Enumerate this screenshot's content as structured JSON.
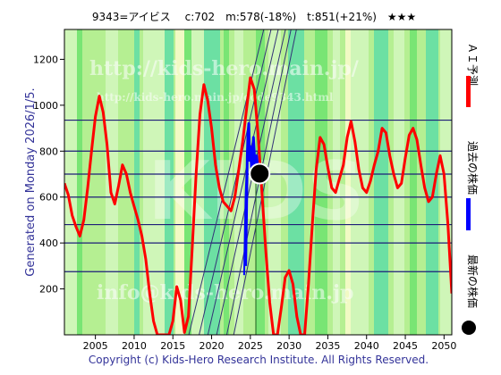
{
  "header": {
    "title": "9343=アイビス　 c:702　m:578(-18%)　t:851(+21%)　★★★"
  },
  "side_text": "Generated on Monday 2026/1/5.",
  "footer": "Copyright (c) Kids-Hero Research Institute. All Rights Reserved.",
  "watermarks": {
    "url": "http://kids-hero.main.jp/",
    "code_url": "http://kids-hero.main.jp/code9343.html",
    "logo": "KIDS",
    "email": "info@kids-hero.main.jp"
  },
  "legend": {
    "ai_label": "ＡＩ予測",
    "past_label": "過去の株価",
    "latest_label": "最新の株価"
  },
  "colors": {
    "plot_bg": "#b5ef92",
    "band_light": "#d4f7be",
    "band_bright": "#6fe36f",
    "band_teal": "#5fdda6",
    "band_yellow": "#fbfbcc",
    "ai_line": "#ff0000",
    "past_line": "#0000ff",
    "hline": "#1d1d78",
    "diag_line": "#333377",
    "latest_dot": "#000000"
  },
  "chart_data": {
    "type": "line",
    "xlim": [
      2001,
      2051
    ],
    "ylim": [
      0,
      1330
    ],
    "xticks": [
      2005,
      2010,
      2015,
      2020,
      2025,
      2030,
      2035,
      2040,
      2045,
      2050
    ],
    "yticks": [
      200,
      400,
      600,
      800,
      1000,
      1200
    ],
    "hlines": [
      275,
      400,
      480,
      600,
      700,
      800,
      935
    ],
    "latest": {
      "x": 2026.2,
      "y": 702
    },
    "series": [
      {
        "name": "ＡＩ予測",
        "x": [
          2001,
          2001.5,
          2002,
          2002.5,
          2003,
          2003.5,
          2004,
          2004.5,
          2005,
          2005.5,
          2006,
          2006.5,
          2007,
          2007.5,
          2008,
          2008.5,
          2009,
          2009.5,
          2010,
          2010.5,
          2011,
          2011.5,
          2012,
          2012.5,
          2013,
          2013.5,
          2014,
          2014.5,
          2015,
          2015.5,
          2016,
          2016.5,
          2017,
          2017.5,
          2018,
          2018.5,
          2019,
          2019.5,
          2020,
          2020.5,
          2021,
          2021.5,
          2022,
          2022.5,
          2023,
          2023.5,
          2024,
          2024.5,
          2025,
          2025.5,
          2026,
          2026.5,
          2027,
          2027.5,
          2028,
          2028.5,
          2029,
          2029.5,
          2030,
          2030.5,
          2031,
          2031.5,
          2032,
          2032.5,
          2033,
          2033.5,
          2034,
          2034.5,
          2035,
          2035.5,
          2036,
          2036.5,
          2037,
          2037.5,
          2038,
          2038.5,
          2039,
          2039.5,
          2040,
          2040.5,
          2041,
          2041.5,
          2042,
          2042.5,
          2043,
          2043.5,
          2044,
          2044.5,
          2045,
          2045.5,
          2046,
          2046.5,
          2047,
          2047.5,
          2048,
          2048.5,
          2049,
          2049.5,
          2050,
          2050.5,
          2051
        ],
        "values": [
          660,
          610,
          520,
          470,
          430,
          500,
          640,
          800,
          950,
          1040,
          970,
          830,
          620,
          570,
          650,
          740,
          700,
          620,
          560,
          500,
          430,
          330,
          180,
          60,
          0,
          0,
          0,
          0,
          60,
          210,
          150,
          10,
          80,
          380,
          700,
          960,
          1090,
          1020,
          900,
          740,
          640,
          580,
          560,
          540,
          600,
          720,
          840,
          980,
          1120,
          1070,
          870,
          620,
          360,
          140,
          0,
          0,
          120,
          250,
          280,
          220,
          80,
          0,
          0,
          220,
          480,
          720,
          860,
          830,
          730,
          640,
          620,
          680,
          740,
          860,
          930,
          840,
          720,
          640,
          620,
          670,
          740,
          800,
          900,
          880,
          780,
          700,
          640,
          660,
          770,
          870,
          900,
          850,
          740,
          640,
          580,
          600,
          700,
          780,
          700,
          480,
          180
        ],
        "note": ""
      }
    ]
  }
}
